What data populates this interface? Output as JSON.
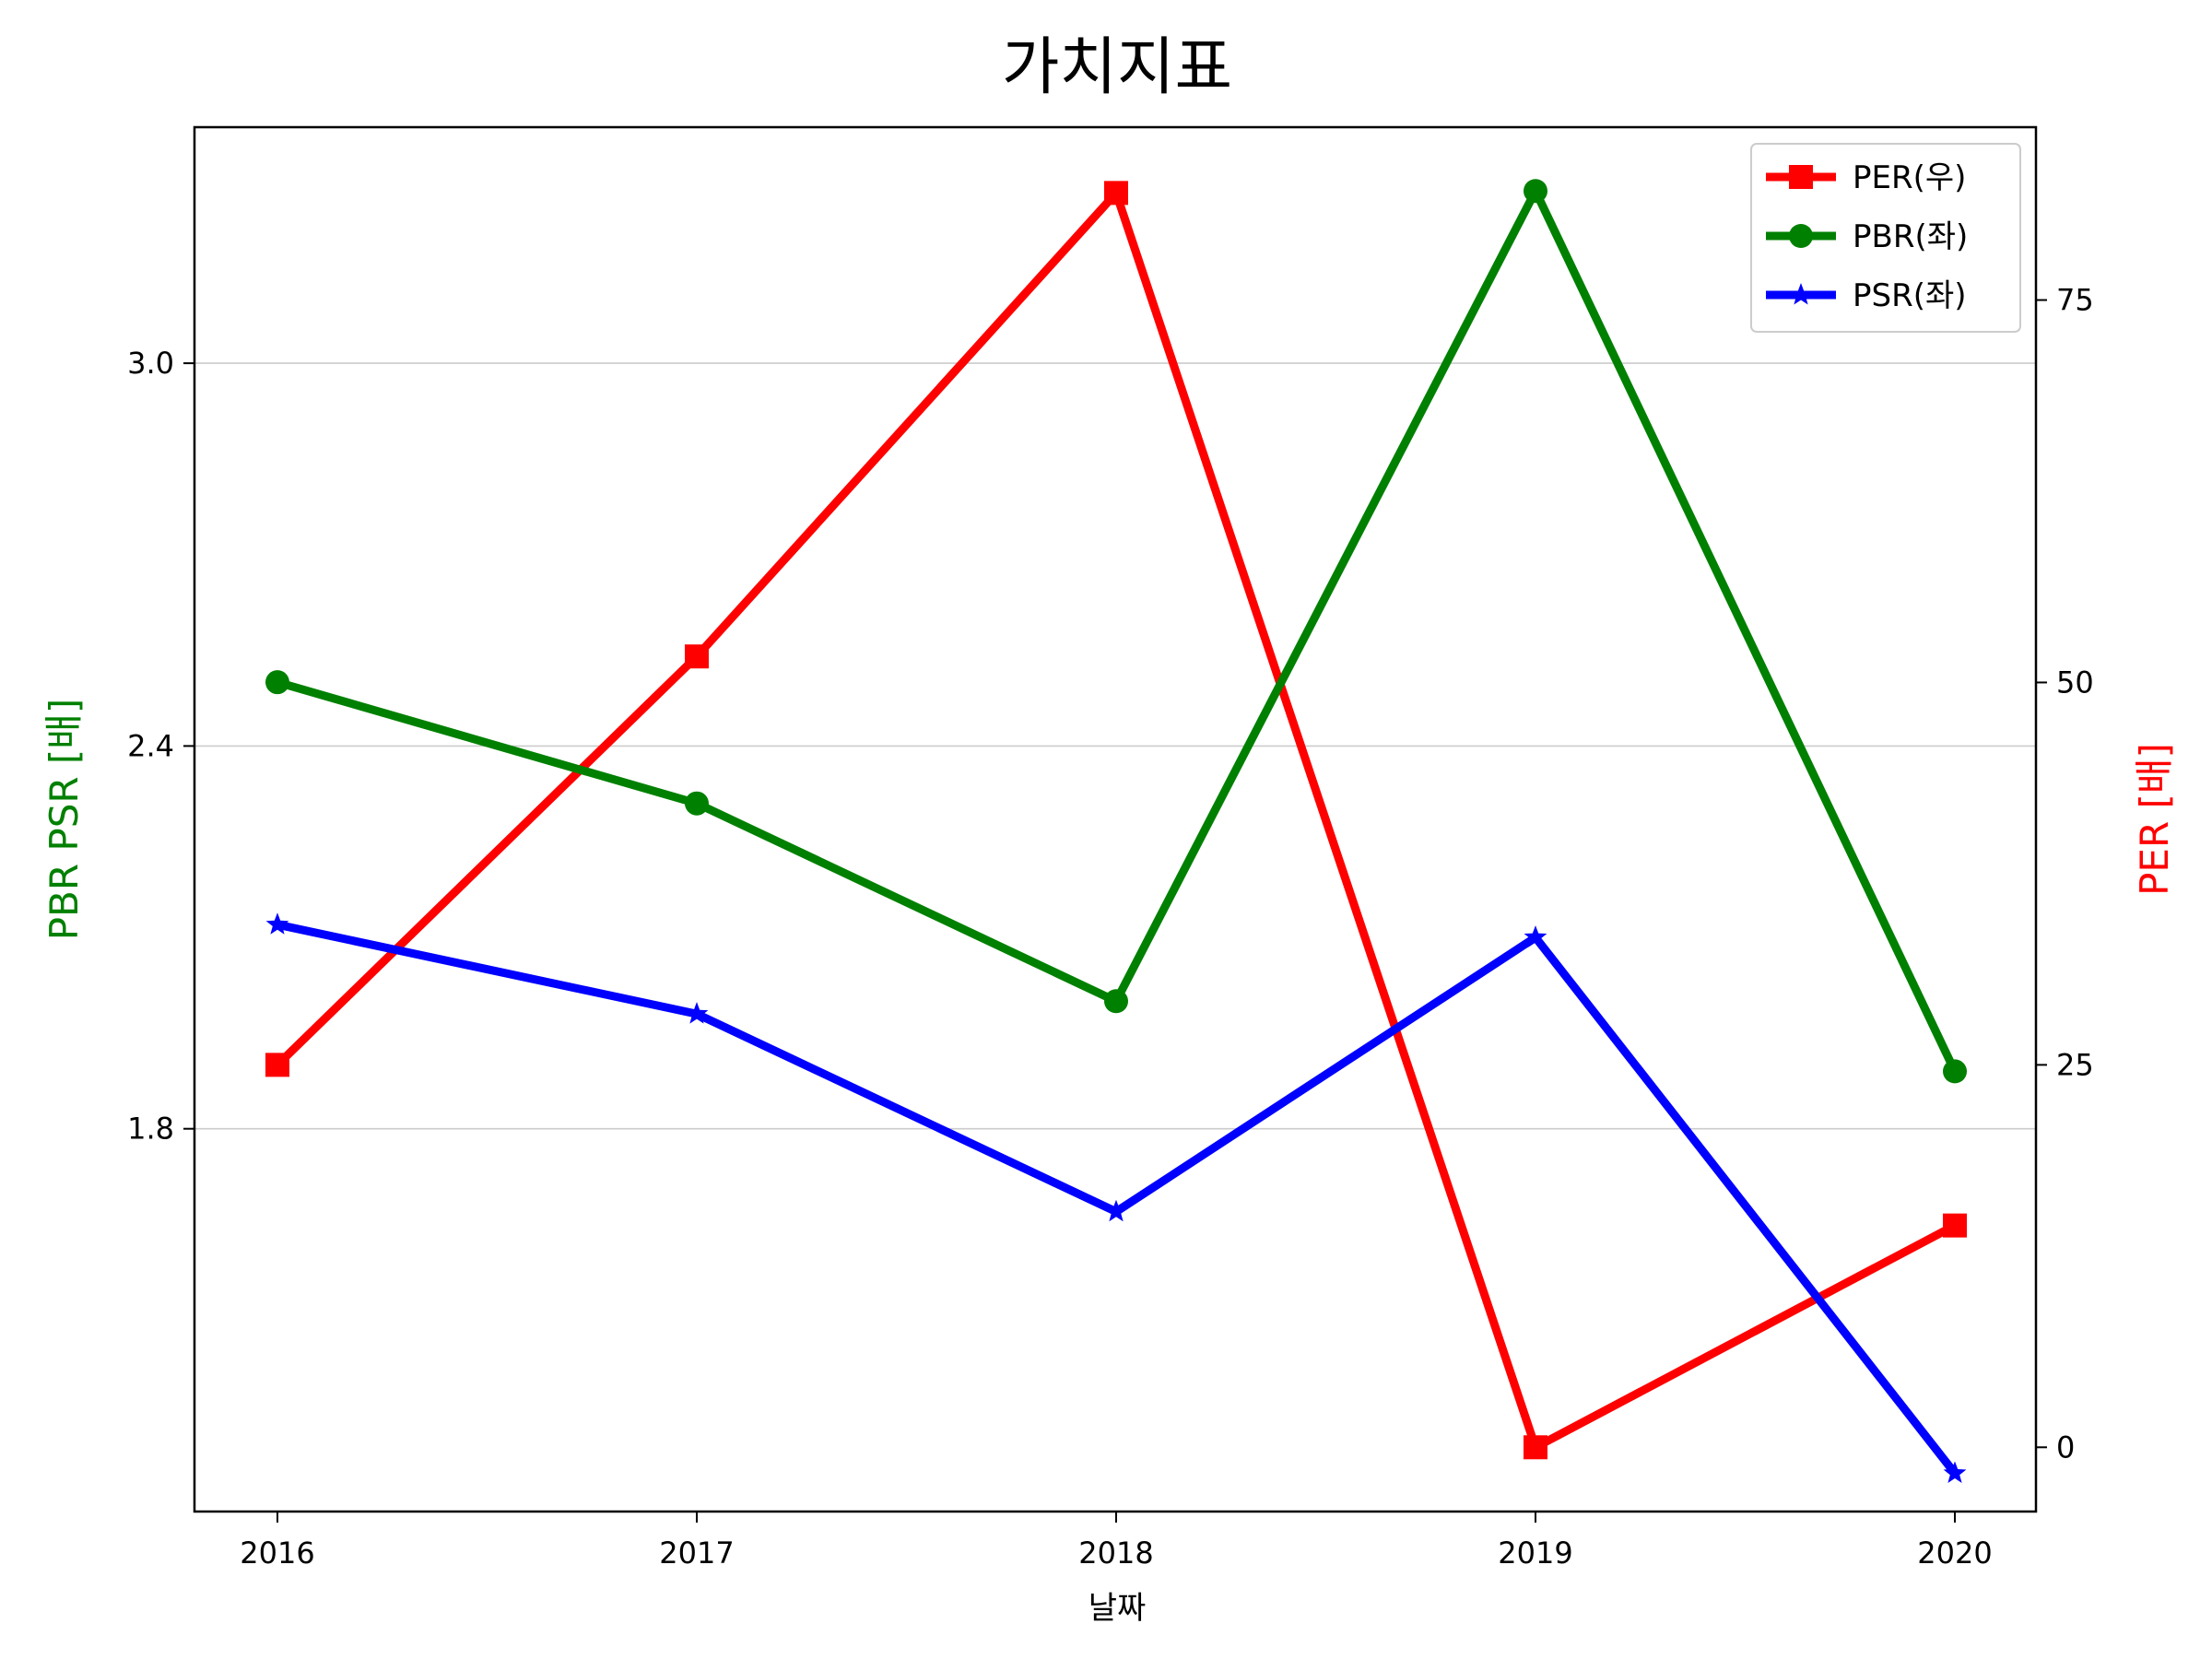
{
  "chart_data": {
    "type": "line",
    "title": "가치지표",
    "xlabel": "날짜",
    "ylabel_left": "PBR PSR [배]",
    "ylabel_right": "PER [배]",
    "categories": [
      "2016",
      "2017",
      "2018",
      "2019",
      "2020"
    ],
    "left_axis": {
      "ylim": [
        1.2,
        3.37
      ],
      "ticks": [
        "1.8",
        "2.4",
        "3.0"
      ],
      "tick_values": [
        1.8,
        2.4,
        3.0
      ]
    },
    "right_axis": {
      "ylim": [
        -4.2,
        86.3
      ],
      "ticks": [
        "0",
        "25",
        "50",
        "75"
      ],
      "tick_values": [
        0,
        25,
        50,
        75
      ]
    },
    "grid": "horizontal (left axis)",
    "legend_position": "top-right",
    "series": [
      {
        "name": "PER(우)",
        "axis": "right",
        "marker": "square",
        "color": "#ff0000",
        "values": [
          25.0,
          51.7,
          82.0,
          0.0,
          14.5
        ]
      },
      {
        "name": "PBR(좌)",
        "axis": "left",
        "marker": "circle",
        "color": "#008000",
        "values": [
          2.5,
          2.31,
          2.0,
          3.27,
          1.89
        ]
      },
      {
        "name": "PSR(좌)",
        "axis": "left",
        "marker": "star",
        "color": "#0000ff",
        "values": [
          2.12,
          1.98,
          1.67,
          2.1,
          1.26
        ]
      }
    ]
  }
}
